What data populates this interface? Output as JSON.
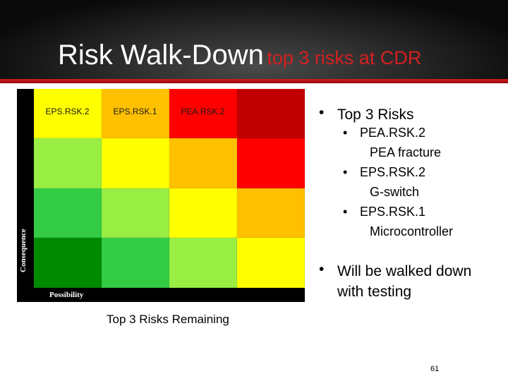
{
  "slide": {
    "title": "Risk Walk-Down",
    "subtitle": "top 3 risks at CDR",
    "page_number": "61"
  },
  "matrix": {
    "y_axis_label": "Consequence",
    "x_axis_label": "Possibility",
    "caption": "Top 3 Risks Remaining",
    "cells": [
      [
        {
          "label": "EPS.RSK.2",
          "color": "#ffff00"
        },
        {
          "label": "EPS.RSK.1",
          "color": "#ffc000"
        },
        {
          "label": "PEA.RSK.2",
          "color": "#ff0000"
        },
        {
          "label": "",
          "color": "#c00000"
        }
      ],
      [
        {
          "label": "",
          "color": "#99ee44"
        },
        {
          "label": "",
          "color": "#ffff00"
        },
        {
          "label": "",
          "color": "#ffc000"
        },
        {
          "label": "",
          "color": "#ff0000"
        }
      ],
      [
        {
          "label": "",
          "color": "#33cc44"
        },
        {
          "label": "",
          "color": "#99ee44"
        },
        {
          "label": "",
          "color": "#ffff00"
        },
        {
          "label": "",
          "color": "#ffc000"
        }
      ],
      [
        {
          "label": "",
          "color": "#008a00"
        },
        {
          "label": "",
          "color": "#33cc44"
        },
        {
          "label": "",
          "color": "#99ee44"
        },
        {
          "label": "",
          "color": "#ffff00"
        }
      ]
    ]
  },
  "bullets": {
    "top_header": "Top 3 Risks",
    "items": [
      {
        "id": "PEA.RSK.2",
        "desc": "PEA fracture"
      },
      {
        "id": "EPS.RSK.2",
        "desc": "G-switch"
      },
      {
        "id": "EPS.RSK.1",
        "desc": "Microcontroller"
      }
    ],
    "walk_line1": "Will be walked down",
    "walk_line2": "with testing"
  }
}
